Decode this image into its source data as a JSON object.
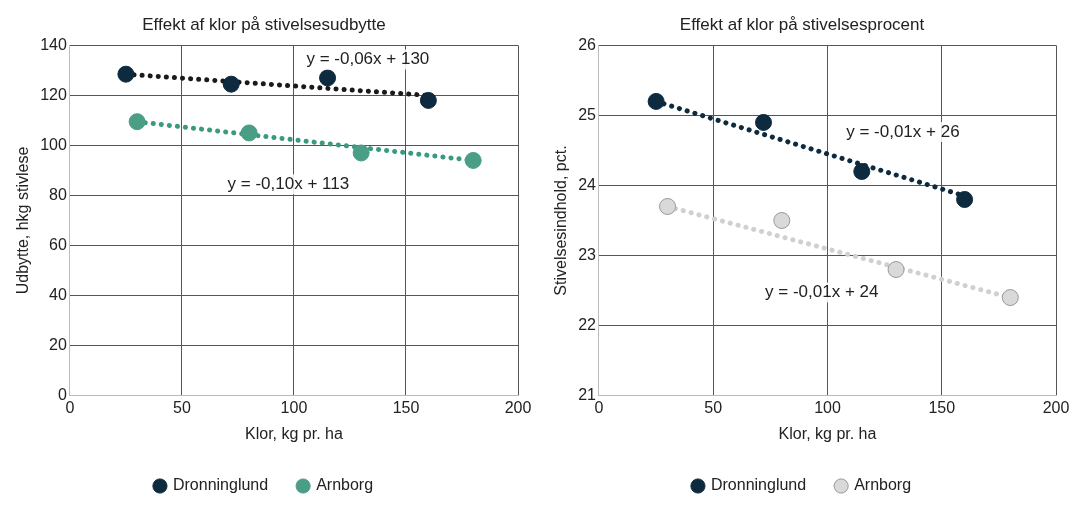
{
  "chart_data": [
    {
      "type": "scatter",
      "title": "Effekt af klor på stivelsesudbytte",
      "xlabel": "Klor, kg pr. ha",
      "ylabel": "Udbytte, hkg stivlese",
      "xlim": [
        0,
        200
      ],
      "xticks": [
        0,
        50,
        100,
        150,
        200
      ],
      "ylim": [
        0,
        140
      ],
      "yticks": [
        0,
        20,
        40,
        60,
        80,
        100,
        120,
        140
      ],
      "grid": true,
      "legend": "bottom",
      "marker": "circle",
      "series": [
        {
          "name": "Dronninglund",
          "color": "#0d2a3f",
          "x": [
            25,
            72,
            115,
            160
          ],
          "values": [
            128.5,
            124.5,
            127,
            118
          ]
        },
        {
          "name": "Arnborg",
          "color": "#4a9e85",
          "x": [
            30,
            80,
            130,
            180
          ],
          "values": [
            109.5,
            105,
            97,
            94
          ]
        },
        {
          "type": "line",
          "line_style": "dotted",
          "marker": "none",
          "color": "#1a1a1a",
          "x": [
            25,
            160
          ],
          "values": [
            128.5,
            120
          ]
        },
        {
          "type": "line",
          "line_style": "dotted",
          "marker": "none",
          "color": "#3a9a80",
          "x": [
            30,
            180
          ],
          "values": [
            109.5,
            94
          ]
        }
      ],
      "annotations": [
        "y = -0,06x + 130",
        "y = -0,10x + 113"
      ]
    },
    {
      "type": "scatter",
      "title": "Effekt af klor på stivelsesprocent",
      "xlabel": "Klor, kg pr. ha",
      "ylabel": "Stivelsesindhold, pct.",
      "xlim": [
        0,
        200
      ],
      "xticks": [
        0,
        50,
        100,
        150,
        200
      ],
      "ylim": [
        21,
        26
      ],
      "yticks": [
        21,
        22,
        23,
        24,
        25,
        26
      ],
      "grid": true,
      "legend": "bottom",
      "marker": "circle",
      "series": [
        {
          "name": "Dronninglund",
          "color": "#0d2a3f",
          "x": [
            25,
            72,
            115,
            160
          ],
          "values": [
            25.2,
            24.9,
            24.2,
            23.8
          ]
        },
        {
          "name": "Arnborg",
          "color": "#d9d9d9",
          "x": [
            30,
            80,
            130,
            180
          ],
          "values": [
            23.7,
            23.5,
            22.8,
            22.4
          ]
        },
        {
          "type": "line",
          "line_style": "dotted",
          "marker": "none",
          "color": "#0d2a3f",
          "x": [
            25,
            160
          ],
          "values": [
            25.2,
            23.85
          ]
        },
        {
          "type": "line",
          "line_style": "dotted",
          "marker": "none",
          "color": "#d0d0d0",
          "x": [
            30,
            180
          ],
          "values": [
            23.7,
            22.4
          ]
        }
      ],
      "annotations": [
        "y = -0,01x + 26",
        "y = -0,01x + 24"
      ]
    }
  ]
}
